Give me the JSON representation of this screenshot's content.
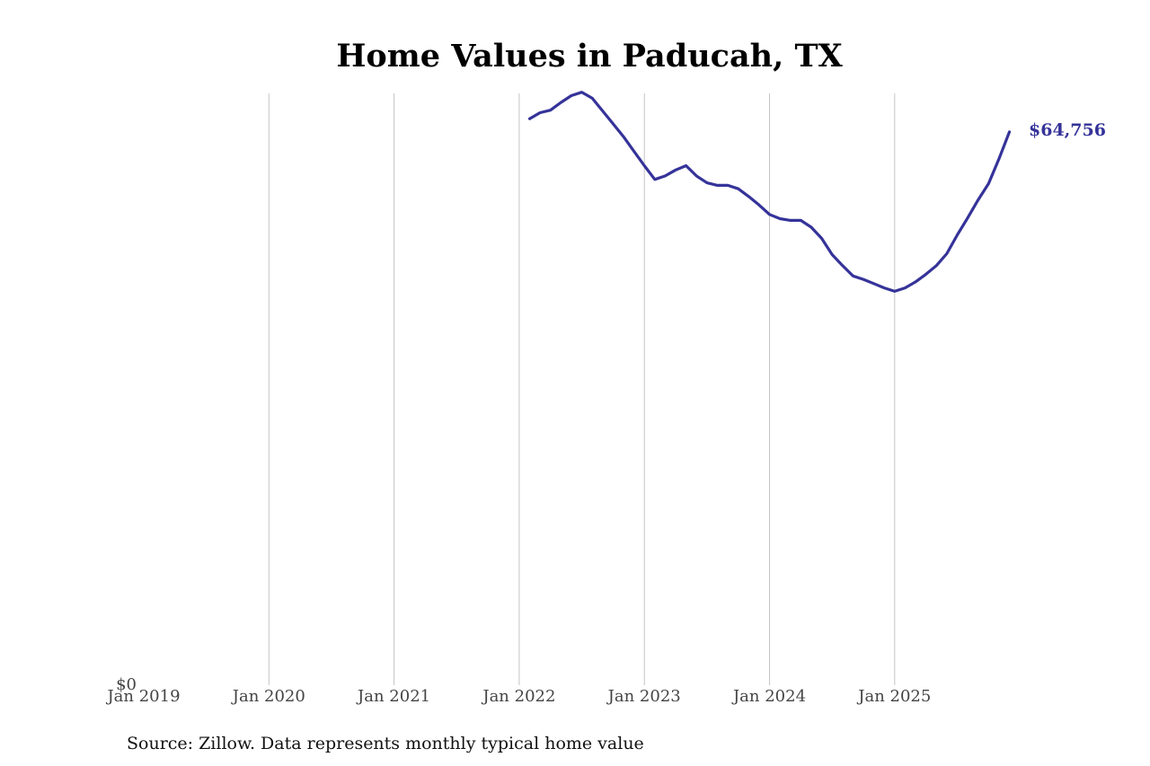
{
  "chart_data": {
    "type": "line",
    "title": "Home Values in Paducah, TX",
    "source": "Source: Zillow. Data represents monthly typical home value",
    "ylim": [
      0,
      70000
    ],
    "y_tick_labels": [
      "$0"
    ],
    "x_range": [
      "2019-01",
      "2026-01"
    ],
    "x_tick_labels": [
      "Jan 2019",
      "Jan 2020",
      "Jan 2021",
      "Jan 2022",
      "Jan 2023",
      "Jan 2024",
      "Jan 2025"
    ],
    "grid": "vertical",
    "line_color": "#353399",
    "end_label": "$64,756",
    "series": [
      {
        "x": [
          "2022-02",
          "2022-03",
          "2022-04",
          "2022-05",
          "2022-06",
          "2022-07",
          "2022-08",
          "2022-09",
          "2022-10",
          "2022-11",
          "2022-12",
          "2023-01",
          "2023-02",
          "2023-03",
          "2023-04",
          "2023-05",
          "2023-06",
          "2023-07",
          "2023-08",
          "2023-09",
          "2023-10",
          "2023-11",
          "2023-12",
          "2024-01",
          "2024-02",
          "2024-03",
          "2024-04",
          "2024-05",
          "2024-06",
          "2024-07",
          "2024-08",
          "2024-09",
          "2024-10",
          "2024-11",
          "2024-12",
          "2025-01",
          "2025-02",
          "2025-03",
          "2025-04",
          "2025-05",
          "2025-06",
          "2025-07",
          "2025-08",
          "2025-09",
          "2025-10",
          "2025-11",
          "2025-12"
        ],
        "values": [
          66300,
          67000,
          67300,
          68200,
          69000,
          69400,
          68700,
          67200,
          65700,
          64200,
          62500,
          60800,
          59200,
          59600,
          60300,
          60800,
          59600,
          58800,
          58500,
          58500,
          58100,
          57200,
          56200,
          55100,
          54600,
          54400,
          54400,
          53600,
          52300,
          50400,
          49100,
          47900,
          47500,
          47000,
          46500,
          46100,
          46500,
          47200,
          48100,
          49100,
          50500,
          52700,
          54700,
          56800,
          58700,
          61600,
          64756
        ]
      }
    ]
  }
}
